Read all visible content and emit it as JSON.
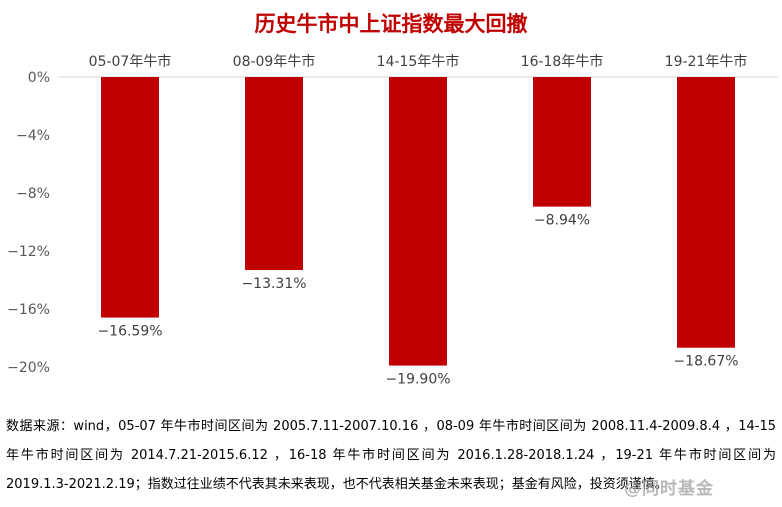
{
  "chart_data": {
    "type": "bar",
    "title": "历史牛市中上证指数最大回撤",
    "categories": [
      "05-07年牛市",
      "08-09年牛市",
      "14-15年牛市",
      "16-18年牛市",
      "19-21年牛市"
    ],
    "values": [
      -16.59,
      -13.31,
      -19.9,
      -8.94,
      -18.67
    ],
    "value_labels": [
      "−16.59%",
      "−13.31%",
      "−19.90%",
      "−8.94%",
      "−18.67%"
    ],
    "yticks": [
      0,
      -4,
      -8,
      -12,
      -16,
      -20
    ],
    "ytick_labels": [
      "0%",
      "−4%",
      "−8%",
      "−12%",
      "−16%",
      "−20%"
    ],
    "ylim": [
      -20,
      0
    ],
    "xlabel": "",
    "ylabel": "",
    "category_position": "top",
    "grid": false,
    "bar_color": "#c00000",
    "axis_color": "#d9d9d9"
  },
  "source_note": "数据来源：wind，05-07 年牛市时间区间为 2005.7.11-2007.10.16 ，08-09 年牛市时间区间为 2008.11.4-2009.8.4 ，14-15 年牛市时间区间为 2014.7.21-2015.6.12 ，16-18 年牛市时间区间为 2016.1.28-2018.1.24 ，19-21 年牛市时间区间为 2019.1.3-2021.2.19；指数过往业绩不代表其未来表现，也不代表相关基金未来表现；基金有风险，投资须谨慎。",
  "watermark": "@同时基金"
}
